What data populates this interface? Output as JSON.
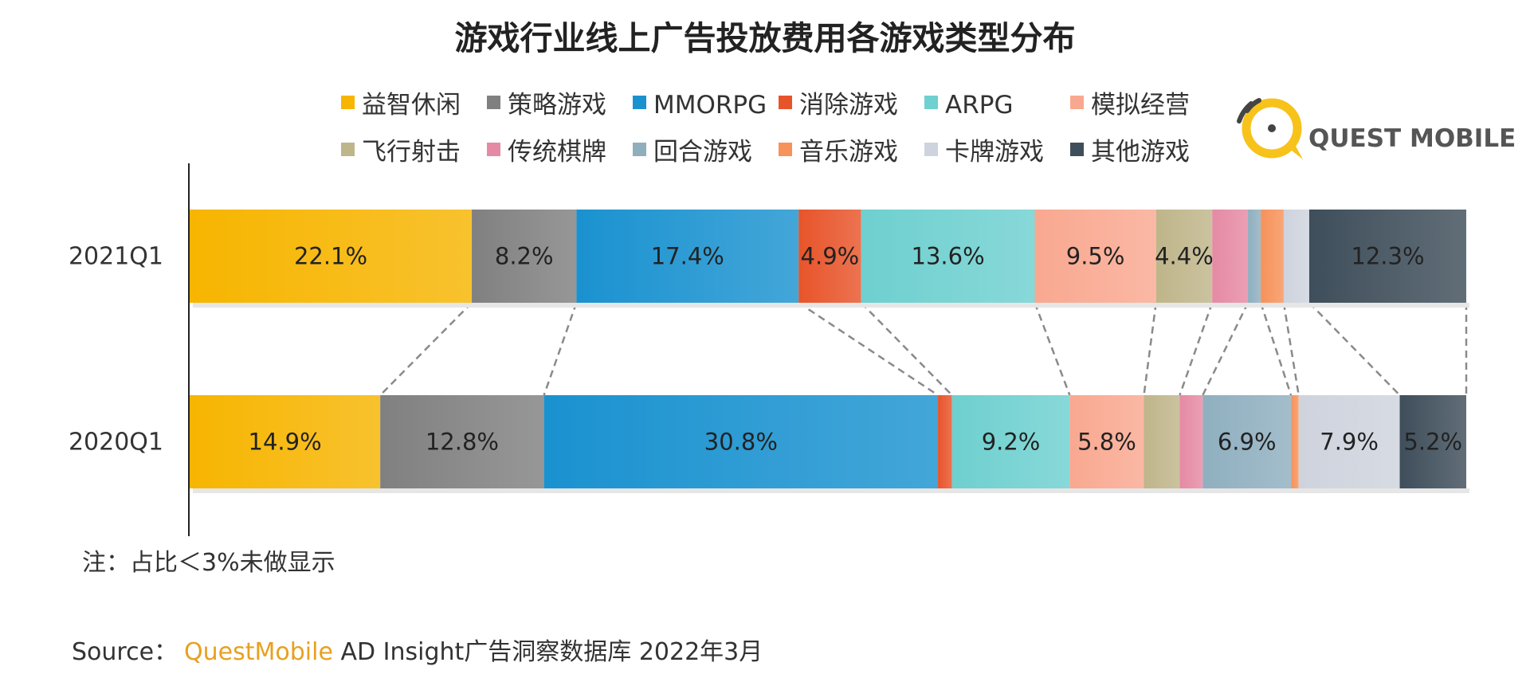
{
  "title": "游戏行业线上广告投放费用各游戏类型分布",
  "legend": [
    {
      "name": "益智休闲",
      "color": "#F7B500"
    },
    {
      "name": "策略游戏",
      "color": "#808080"
    },
    {
      "name": "MMORPG",
      "color": "#1A92D0"
    },
    {
      "name": "消除游戏",
      "color": "#E8542A"
    },
    {
      "name": "ARPG",
      "color": "#6ED0CF"
    },
    {
      "name": "模拟经营",
      "color": "#F9A890"
    },
    {
      "name": "飞行射击",
      "color": "#BFB58A"
    },
    {
      "name": "传统棋牌",
      "color": "#E58AA4"
    },
    {
      "name": "回合游戏",
      "color": "#8FAFBF"
    },
    {
      "name": "音乐游戏",
      "color": "#F6925A"
    },
    {
      "name": "卡牌游戏",
      "color": "#CED3DD"
    },
    {
      "name": "其他游戏",
      "color": "#3E4E5A"
    }
  ],
  "logo": {
    "text": "QUEST MOBILE"
  },
  "note": "注：占比＜3%未做显示",
  "source": {
    "prefix": "Source：",
    "brand": "QuestMobile",
    "suffix": " AD Insight广告洞察数据库 2022年3月"
  },
  "chart_data": {
    "type": "bar",
    "orientation": "horizontal",
    "stacked": "100%",
    "categories": [
      "2021Q1",
      "2020Q1"
    ],
    "series": [
      {
        "name": "益智休闲",
        "values": [
          22.1,
          14.9
        ],
        "labels": [
          "22.1%",
          "14.9%"
        ]
      },
      {
        "name": "策略游戏",
        "values": [
          8.2,
          12.8
        ],
        "labels": [
          "8.2%",
          "12.8%"
        ]
      },
      {
        "name": "MMORPG",
        "values": [
          17.4,
          30.8
        ],
        "labels": [
          "17.4%",
          "30.8%"
        ]
      },
      {
        "name": "消除游戏",
        "values": [
          4.9,
          1.1
        ],
        "labels": [
          "4.9%",
          ""
        ]
      },
      {
        "name": "ARPG",
        "values": [
          13.6,
          9.2
        ],
        "labels": [
          "13.6%",
          "9.2%"
        ]
      },
      {
        "name": "模拟经营",
        "values": [
          9.5,
          5.8
        ],
        "labels": [
          "9.5%",
          "5.8%"
        ]
      },
      {
        "name": "飞行射击",
        "values": [
          4.4,
          2.8
        ],
        "labels": [
          "4.4%",
          ""
        ]
      },
      {
        "name": "传统棋牌",
        "values": [
          2.8,
          1.8
        ],
        "labels": [
          "",
          ""
        ]
      },
      {
        "name": "回合游戏",
        "values": [
          1.0,
          6.9
        ],
        "labels": [
          "",
          "6.9%"
        ]
      },
      {
        "name": "音乐游戏",
        "values": [
          1.8,
          0.6
        ],
        "labels": [
          "",
          ""
        ]
      },
      {
        "name": "卡牌游戏",
        "values": [
          2.0,
          7.9
        ],
        "labels": [
          "",
          "7.9%"
        ]
      },
      {
        "name": "其他游戏",
        "values": [
          12.3,
          5.2
        ],
        "labels": [
          "12.3%",
          "5.2%"
        ]
      }
    ],
    "total": 100
  }
}
